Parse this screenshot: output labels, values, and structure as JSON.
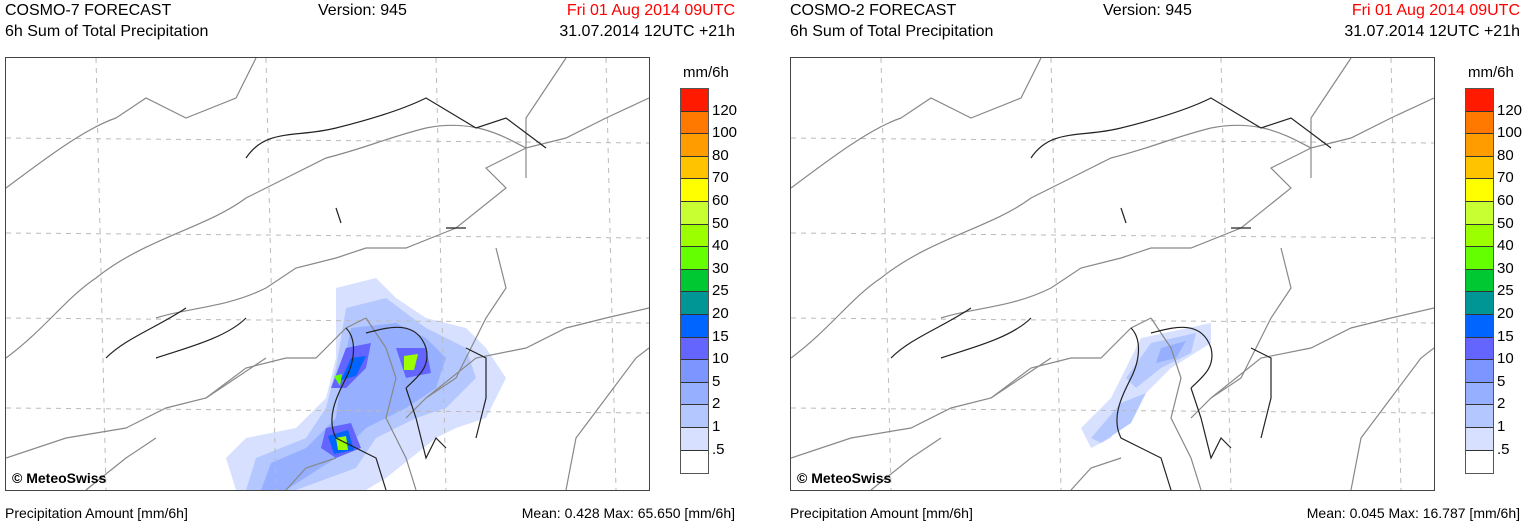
{
  "chart_data": [
    {
      "type": "heatmap",
      "model": "COSMO-7 FORECAST",
      "title": "6h Sum of Total Precipitation",
      "version": "Version: 945",
      "valid_time": "Fri 01 Aug 2014 09UTC",
      "run": "31.07.2014 12UTC +21h",
      "copyright": "© MeteoSwiss",
      "xlabel": "Precipitation Amount [mm/6h]",
      "stats": "Mean:  0.428 Max:  65.650 [mm/6h]",
      "mean": 0.428,
      "max": 65.65
    },
    {
      "type": "heatmap",
      "model": "COSMO-2 FORECAST",
      "title": "6h Sum of Total Precipitation",
      "version": "Version: 945",
      "valid_time": "Fri 01 Aug 2014 09UTC",
      "run": "31.07.2014 12UTC +21h",
      "copyright": "© MeteoSwiss",
      "xlabel": "Precipitation Amount [mm/6h]",
      "stats": "Mean:  0.045 Max:  16.787 [mm/6h]",
      "mean": 0.045,
      "max": 16.787
    }
  ],
  "legend": {
    "unit": "mm/6h",
    "labels": [
      "120",
      "100",
      "80",
      "70",
      "60",
      "50",
      "40",
      "30",
      "25",
      "20",
      "15",
      "10",
      "5",
      "2",
      "1",
      ".5"
    ],
    "colors": [
      "#ff1a00",
      "#ff7800",
      "#ff9c00",
      "#ffc300",
      "#ffff00",
      "#c8ff32",
      "#9bff00",
      "#64ff00",
      "#00c832",
      "#009696",
      "#0064ff",
      "#6464ff",
      "#7d96ff",
      "#96afff",
      "#b4c8ff",
      "#d7e1ff",
      "#ffffff"
    ]
  }
}
